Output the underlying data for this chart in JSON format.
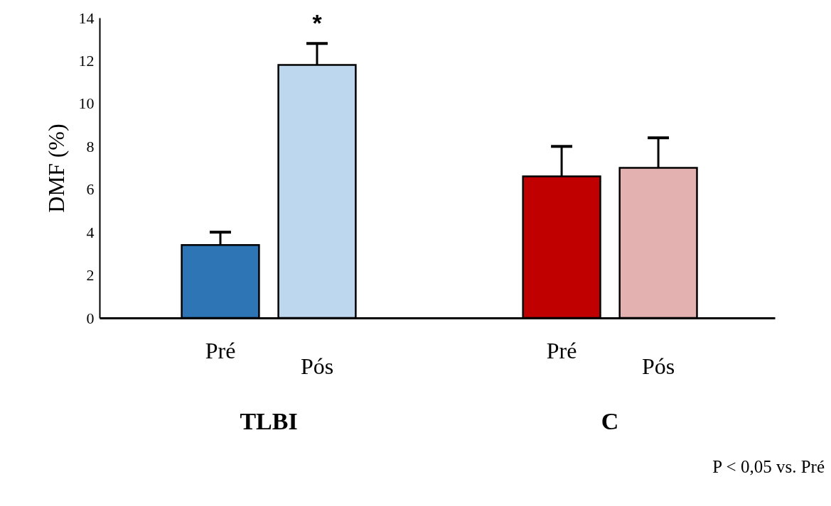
{
  "chart_data": {
    "type": "bar",
    "ylabel": "DMF (%)",
    "categories": [
      "Pré",
      "Pós",
      "Pré",
      "Pós"
    ],
    "values": [
      3.4,
      11.8,
      6.6,
      7.0
    ],
    "errors": [
      0.6,
      1.0,
      1.4,
      1.4
    ],
    "colors": [
      "#2e75b6",
      "#bdd7ee",
      "#c00000",
      "#e2b1b0"
    ],
    "ylim": [
      0,
      14
    ],
    "yticks": [
      0,
      2,
      4,
      6,
      8,
      10,
      12,
      14
    ],
    "tick_labels": "y",
    "grid": false,
    "annotations": [
      "*",
      "TLBI",
      "C",
      "P < 0,05 vs. Pré"
    ]
  }
}
